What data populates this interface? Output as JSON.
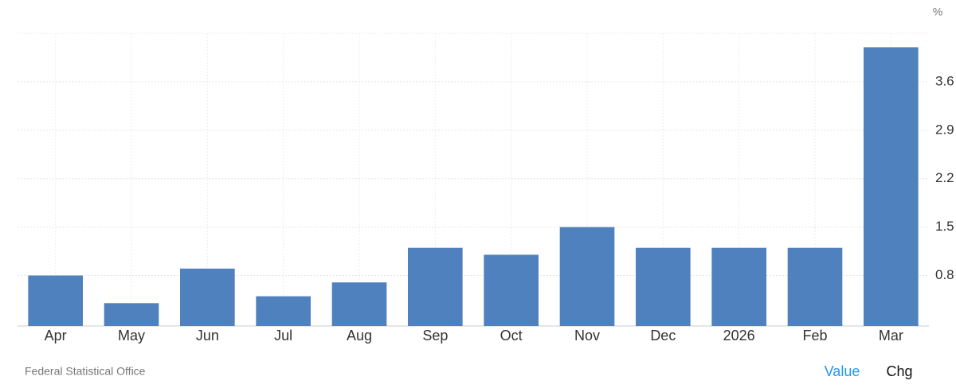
{
  "chart_data": {
    "type": "bar",
    "unit": "%",
    "categories": [
      "Apr",
      "May",
      "Jun",
      "Jul",
      "Aug",
      "Sep",
      "Oct",
      "Nov",
      "Dec",
      "2026",
      "Feb",
      "Mar"
    ],
    "values": [
      0.8,
      0.4,
      0.9,
      0.5,
      0.7,
      1.2,
      1.1,
      1.5,
      1.2,
      1.2,
      1.2,
      4.1
    ],
    "color": "#4e81bd",
    "ylim": [
      0.07,
      4.3
    ],
    "yticks": [
      0.8,
      1.5,
      2.2,
      2.9,
      3.6
    ],
    "grid": true,
    "source": "Federal Statistical Office",
    "toggles": [
      "Value",
      "Chg"
    ]
  }
}
